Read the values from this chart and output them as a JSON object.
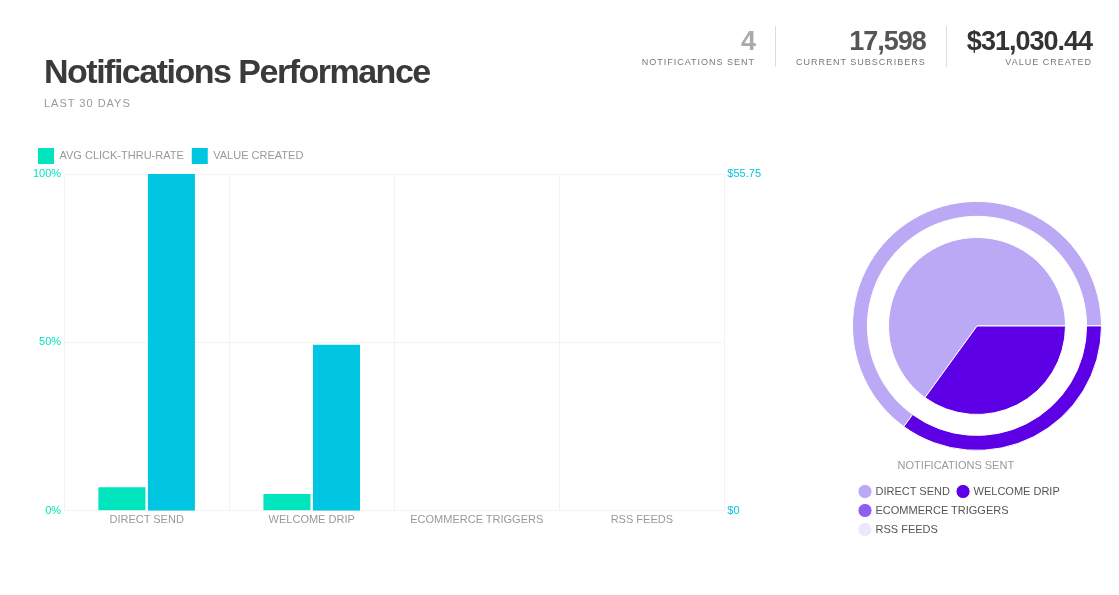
{
  "chart_data": [
    {
      "type": "other",
      "title": "Notifications Performance",
      "subtitle": "LAST 30 DAYS",
      "annotations": [
        "4",
        "NOTIFICATIONS SENT",
        "17,598",
        "CURRENT SUBSCRIBERS",
        "$31,030.44",
        "VALUE CREATED"
      ]
    },
    {
      "type": "bar",
      "categories": [
        "DIRECT SEND",
        "WELCOME DRIP",
        "ECOMMERCE TRIGGERS",
        "RSS FEEDS"
      ],
      "series": [
        {
          "name": "AVG CLICK-THRU-RATE",
          "color": "#00e5bd",
          "values": [
            7,
            5,
            0,
            0
          ]
        },
        {
          "name": "VALUE CREATED",
          "color": "#00c6e2",
          "axis": "y2",
          "values": [
            55.75,
            27.5,
            0,
            0
          ]
        }
      ],
      "ylim": [
        0,
        100
      ],
      "yticks": [
        {
          "value": 0,
          "label": "0%"
        },
        {
          "value": 50,
          "label": "50%"
        },
        {
          "value": 100,
          "label": "100%"
        }
      ],
      "y2lim": [
        0,
        55.75
      ],
      "y2ticks": [
        {
          "value": 0,
          "label": "$0"
        },
        {
          "value": 55.75,
          "label": "$55.75"
        }
      ],
      "grid": true,
      "legend": "top left"
    },
    {
      "type": "donut",
      "legend_title": "NOTIFICATIONS SENT",
      "categories": [
        "DIRECT SEND",
        "WELCOME DRIP",
        "ECOMMERCE TRIGGERS",
        "RSS FEEDS"
      ],
      "series": [
        {
          "values": [
            65,
            35,
            0,
            0
          ]
        },
        {
          "values": [
            65,
            35,
            0,
            0
          ]
        }
      ],
      "colors": [
        "#bca9f6",
        "#5e00e6",
        "#8f5ef0",
        "#ede6fd"
      ],
      "legend": "bottom"
    }
  ]
}
